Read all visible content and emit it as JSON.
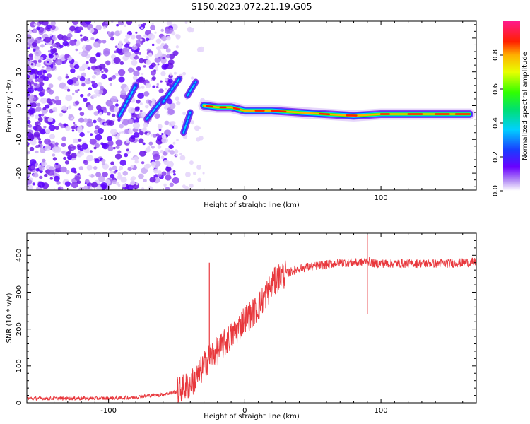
{
  "title": "S150.2023.072.21.19.G05",
  "chart_data": [
    {
      "type": "heatmap",
      "xlabel": "Height of straight line (km)",
      "ylabel": "Frequency (Hz)",
      "xlim": [
        -160,
        170
      ],
      "ylim": [
        -25,
        25
      ],
      "xticks": [
        -100,
        0,
        100
      ],
      "yticks": [
        -20,
        -10,
        0,
        10,
        20
      ],
      "colorbar": {
        "label": "Normalized spectral amplitude",
        "range": [
          0,
          1
        ],
        "ticks": [
          "0.0",
          "0.2",
          "0.4",
          "0.6",
          "0.8"
        ],
        "tick_values": [
          0,
          0.2,
          0.4,
          0.6,
          0.8
        ],
        "colormap": "rainbow (white-violet-blue-cyan-green-yellow-red-magenta)"
      },
      "ridge": {
        "description": "dominant frequency track",
        "points": [
          {
            "x": -30,
            "y": 0.0
          },
          {
            "x": -20,
            "y": -0.5
          },
          {
            "x": -10,
            "y": -0.5
          },
          {
            "x": 0,
            "y": -1.5
          },
          {
            "x": 20,
            "y": -1.5
          },
          {
            "x": 50,
            "y": -2.3
          },
          {
            "x": 80,
            "y": -3.0
          },
          {
            "x": 100,
            "y": -2.5
          },
          {
            "x": 140,
            "y": -2.5
          },
          {
            "x": 165,
            "y": -2.5
          }
        ]
      }
    },
    {
      "type": "line",
      "xlabel": "Height of straight line (km)",
      "ylabel": "SNR (10 * v/v)",
      "xlim": [
        -160,
        170
      ],
      "ylim": [
        0,
        460
      ],
      "xticks": [
        -100,
        0,
        100
      ],
      "yticks": [
        0,
        100,
        200,
        300,
        400
      ],
      "series": [
        {
          "color": "#e8383d",
          "x": [
            -160,
            -140,
            -120,
            -100,
            -80,
            -70,
            -60,
            -50,
            -45,
            -40,
            -35,
            -30,
            -25,
            -20,
            -15,
            -10,
            -5,
            0,
            5,
            10,
            15,
            20,
            25,
            30,
            40,
            50,
            60,
            70,
            80,
            85,
            90,
            95,
            100,
            110,
            120,
            130,
            140,
            150,
            160,
            170
          ],
          "y": [
            12,
            12,
            12,
            12,
            15,
            20,
            22,
            30,
            40,
            50,
            70,
            100,
            130,
            140,
            160,
            180,
            200,
            230,
            240,
            260,
            290,
            320,
            340,
            350,
            365,
            370,
            375,
            380,
            380,
            380,
            385,
            378,
            378,
            378,
            378,
            378,
            378,
            378,
            380,
            382
          ]
        }
      ],
      "annotations": [
        {
          "x": -26,
          "y": 380
        },
        {
          "x": 90,
          "y": 455
        },
        {
          "x": 90,
          "y": 240
        }
      ]
    }
  ]
}
